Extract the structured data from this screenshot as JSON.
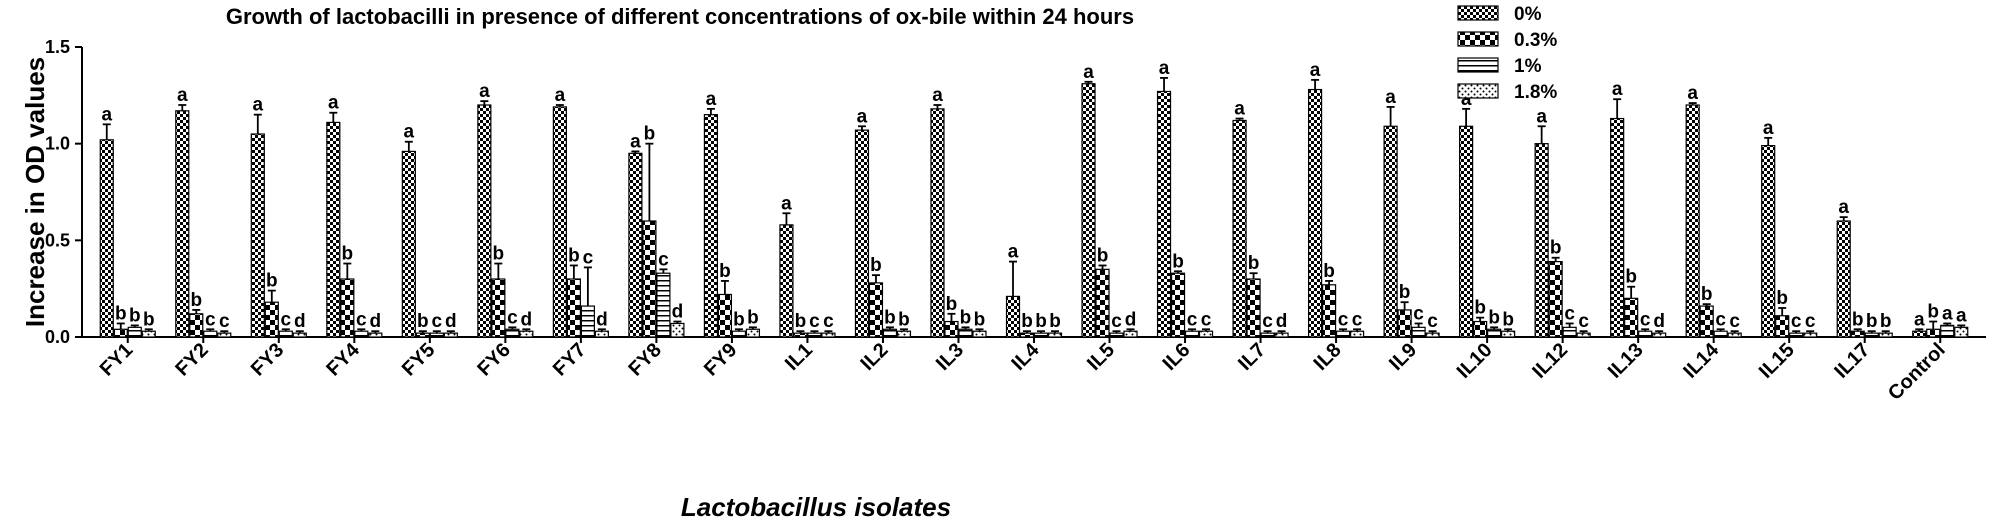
{
  "chart_data": {
    "type": "bar",
    "title": "Growth of lactobacilli in presence of different concentrations of ox-bile within 24 hours",
    "xlabel": "Lactobacillus isolates",
    "ylabel": "Increase in OD values",
    "ylim": [
      0,
      1.5
    ],
    "yticks": [
      "0.0",
      "0.5",
      "1.0",
      "1.5"
    ],
    "legend_position": "top-right",
    "grid": false,
    "categories": [
      "FY1",
      "FY2",
      "FY3",
      "FY4",
      "FY5",
      "FY6",
      "FY7",
      "FY8",
      "FY9",
      "IL1",
      "IL2",
      "IL3",
      "IL4",
      "IL5",
      "IL6",
      "IL7",
      "IL8",
      "IL9",
      "IL10",
      "IL12",
      "IL13",
      "IL14",
      "IL15",
      "IL17",
      "Control"
    ],
    "series": [
      {
        "name": "0%",
        "pattern": "checker",
        "values": [
          1.02,
          1.17,
          1.05,
          1.11,
          0.96,
          1.2,
          1.19,
          0.95,
          1.15,
          0.58,
          1.07,
          1.18,
          0.21,
          1.31,
          1.27,
          1.12,
          1.28,
          1.09,
          1.09,
          1.0,
          1.13,
          1.2,
          0.99,
          0.6,
          0.03
        ],
        "errors": [
          0.08,
          0.03,
          0.1,
          0.05,
          0.05,
          0.02,
          0.01,
          0.01,
          0.03,
          0.06,
          0.02,
          0.02,
          0.18,
          0.01,
          0.07,
          0.01,
          0.05,
          0.1,
          0.09,
          0.09,
          0.1,
          0.01,
          0.04,
          0.02,
          0.01
        ],
        "labels": [
          "a",
          "a",
          "a",
          "a",
          "a",
          "a",
          "a",
          "a",
          "a",
          "a",
          "a",
          "a",
          "a",
          "a",
          "a",
          "a",
          "a",
          "a",
          "a",
          "a",
          "a",
          "a",
          "a",
          "a",
          "a"
        ]
      },
      {
        "name": "0.3%",
        "pattern": "bigchecker",
        "values": [
          0.04,
          0.12,
          0.18,
          0.3,
          0.02,
          0.3,
          0.3,
          0.6,
          0.22,
          0.02,
          0.28,
          0.08,
          0.02,
          0.35,
          0.33,
          0.3,
          0.27,
          0.14,
          0.08,
          0.39,
          0.2,
          0.16,
          0.11,
          0.03,
          0.04
        ],
        "errors": [
          0.03,
          0.02,
          0.06,
          0.08,
          0.01,
          0.08,
          0.07,
          0.4,
          0.07,
          0.01,
          0.04,
          0.04,
          0.01,
          0.02,
          0.01,
          0.03,
          0.02,
          0.04,
          0.02,
          0.02,
          0.06,
          0.01,
          0.04,
          0.01,
          0.04
        ],
        "labels": [
          "b",
          "b",
          "b",
          "b",
          "b",
          "b",
          "b",
          "b",
          "b",
          "b",
          "b",
          "b",
          "b",
          "b",
          "b",
          "b",
          "b",
          "b",
          "b",
          "b",
          "b",
          "b",
          "b",
          "b",
          "b"
        ]
      },
      {
        "name": "1%",
        "pattern": "hlines",
        "values": [
          0.05,
          0.03,
          0.03,
          0.03,
          0.02,
          0.04,
          0.16,
          0.33,
          0.03,
          0.02,
          0.04,
          0.04,
          0.02,
          0.02,
          0.03,
          0.02,
          0.03,
          0.05,
          0.04,
          0.05,
          0.03,
          0.03,
          0.02,
          0.02,
          0.06
        ],
        "errors": [
          0.01,
          0.01,
          0.01,
          0.01,
          0.01,
          0.01,
          0.2,
          0.02,
          0.01,
          0.01,
          0.01,
          0.01,
          0.01,
          0.01,
          0.01,
          0.01,
          0.01,
          0.02,
          0.01,
          0.02,
          0.01,
          0.01,
          0.01,
          0.01,
          0.01
        ],
        "labels": [
          "b",
          "c",
          "c",
          "c",
          "c",
          "c",
          "c",
          "c",
          "b",
          "c",
          "b",
          "b",
          "b",
          "c",
          "c",
          "c",
          "c",
          "c",
          "b",
          "c",
          "c",
          "c",
          "c",
          "b",
          "a"
        ]
      },
      {
        "name": "1.8%",
        "pattern": "dots",
        "values": [
          0.03,
          0.02,
          0.02,
          0.02,
          0.02,
          0.03,
          0.03,
          0.07,
          0.04,
          0.02,
          0.03,
          0.03,
          0.02,
          0.03,
          0.03,
          0.02,
          0.03,
          0.02,
          0.03,
          0.02,
          0.02,
          0.02,
          0.02,
          0.02,
          0.05
        ],
        "errors": [
          0.01,
          0.01,
          0.01,
          0.01,
          0.01,
          0.01,
          0.01,
          0.01,
          0.01,
          0.01,
          0.01,
          0.01,
          0.01,
          0.01,
          0.01,
          0.01,
          0.01,
          0.01,
          0.01,
          0.01,
          0.01,
          0.01,
          0.01,
          0.01,
          0.01
        ],
        "labels": [
          "b",
          "c",
          "d",
          "d",
          "d",
          "d",
          "d",
          "d",
          "b",
          "c",
          "b",
          "b",
          "b",
          "d",
          "c",
          "d",
          "c",
          "c",
          "b",
          "c",
          "d",
          "c",
          "c",
          "b",
          "a"
        ]
      }
    ]
  }
}
